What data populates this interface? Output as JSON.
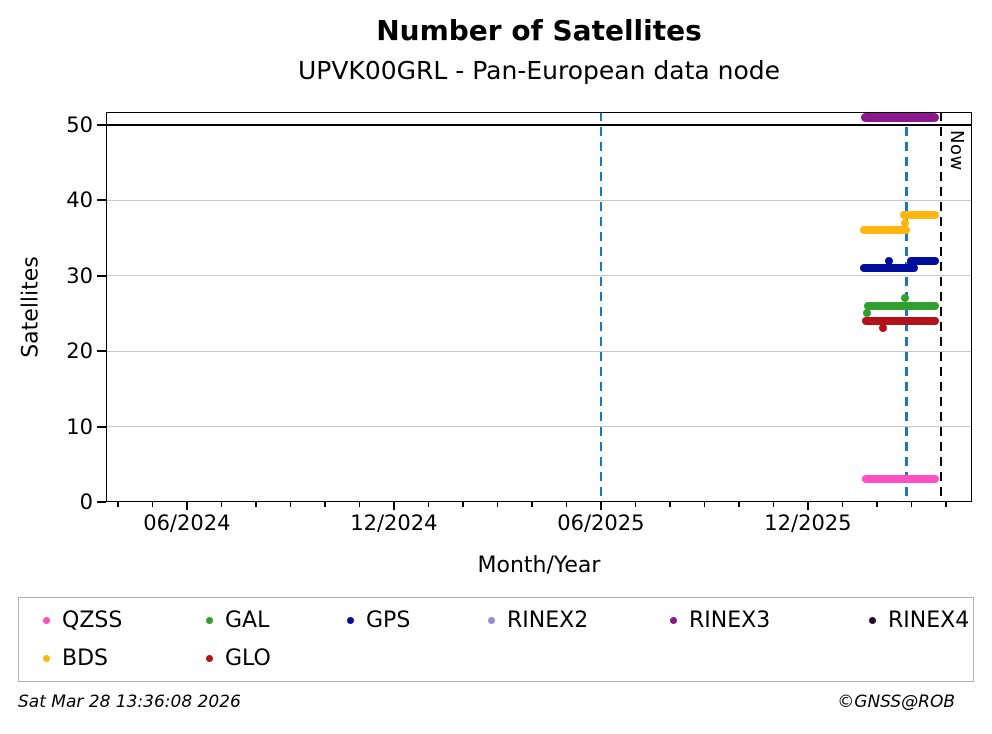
{
  "title": "Number of Satellites",
  "subtitle": "UPVK00GRL - Pan-European data node",
  "x_axis_title": "Month/Year",
  "y_axis_title": "Satellites",
  "footer": {
    "timestamp": "Sat Mar 28 13:36:08 2026",
    "copyright": "©GNSS@ROB"
  },
  "chart_data": {
    "type": "scatter",
    "title": "Number of Satellites",
    "subtitle": "UPVK00GRL - Pan-European data node",
    "xlabel": "Month/Year",
    "ylabel": "Satellites",
    "x_range": [
      "2024-03-21",
      "2026-04-24"
    ],
    "ylim": [
      0,
      51.7
    ],
    "y_ticks": [
      0,
      10,
      20,
      30,
      40,
      50
    ],
    "x_major_ticks": [
      {
        "date": "2024-06-01",
        "label": "06/2024"
      },
      {
        "date": "2024-12-01",
        "label": "12/2024"
      },
      {
        "date": "2025-06-01",
        "label": "06/2025"
      },
      {
        "date": "2025-12-01",
        "label": "12/2025"
      }
    ],
    "x_minor_ticks": "monthly",
    "grid": {
      "horizontal": true,
      "color": "#c8c8c8"
    },
    "reference_lines": {
      "horizontal": [
        {
          "y": 50,
          "color": "#000000",
          "style": "solid"
        }
      ],
      "vertical": [
        {
          "date": "2025-06-01",
          "color": "#1f77b4",
          "style": "dashed",
          "label": ""
        },
        {
          "date": "2026-02-27",
          "color": "#1f77b4",
          "style": "dashed",
          "label": ""
        },
        {
          "date": "2026-03-27",
          "color": "#000000",
          "style": "dashed",
          "label": "Now"
        }
      ]
    },
    "legend_position": "bottom",
    "series": [
      {
        "name": "QZSS",
        "color": "#ff4fc3",
        "marker": 8,
        "segments": [
          {
            "from": "2026-01-22",
            "to": "2026-03-22",
            "value": 3
          }
        ],
        "points": []
      },
      {
        "name": "GAL",
        "color": "#31a031",
        "marker": 8,
        "segments": [
          {
            "from": "2026-01-24",
            "to": "2026-03-22",
            "value": 26
          }
        ],
        "points": [
          {
            "date": "2026-01-23",
            "value": 25
          },
          {
            "date": "2026-02-26",
            "value": 27
          }
        ]
      },
      {
        "name": "GPS",
        "color": "#000d9c",
        "marker": 8,
        "segments": [
          {
            "from": "2026-01-20",
            "to": "2026-03-03",
            "value": 31
          },
          {
            "from": "2026-03-01",
            "to": "2026-03-22",
            "value": 32
          }
        ],
        "points": [
          {
            "date": "2026-02-12",
            "value": 32
          }
        ]
      },
      {
        "name": "RINEX2",
        "color": "#8f8fd2",
        "marker": 8,
        "segments": [],
        "points": []
      },
      {
        "name": "RINEX3",
        "color": "#8a188a",
        "marker": 9,
        "segments": [
          {
            "from": "2026-01-21",
            "to": "2026-03-21",
            "value": 51
          }
        ],
        "points": []
      },
      {
        "name": "RINEX4",
        "color": "#270b2d",
        "marker": 8,
        "segments": [],
        "points": []
      },
      {
        "name": "BDS",
        "color": "#ffb60f",
        "marker": 8,
        "segments": [
          {
            "from": "2026-01-20",
            "to": "2026-02-27",
            "value": 36
          },
          {
            "from": "2026-02-25",
            "to": "2026-03-22",
            "value": 38
          }
        ],
        "points": [
          {
            "date": "2026-02-26",
            "value": 37
          }
        ]
      },
      {
        "name": "GLO",
        "color": "#b3121a",
        "marker": 8,
        "segments": [
          {
            "from": "2026-01-22",
            "to": "2026-03-22",
            "value": 24
          }
        ],
        "points": [
          {
            "date": "2026-02-06",
            "value": 23
          }
        ]
      }
    ]
  }
}
